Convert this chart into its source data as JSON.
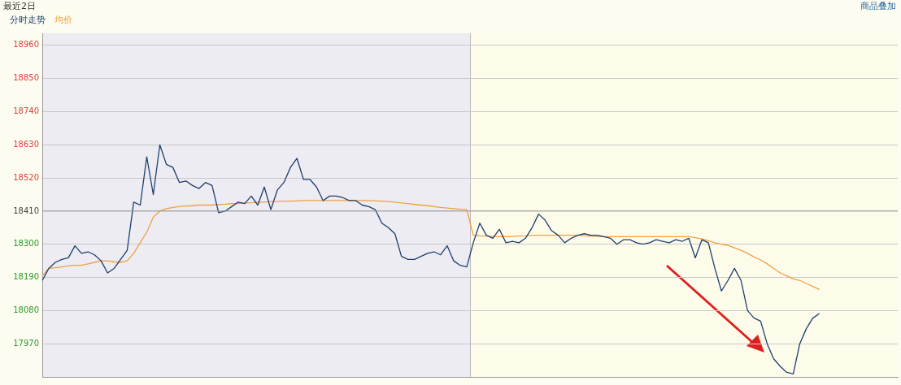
{
  "chart_data": {
    "type": "line",
    "title": "最近2日",
    "annotations": [
      "商品叠加"
    ],
    "categories": [
      null,
      null,
      null,
      null,
      null,
      null,
      null,
      null,
      null,
      null,
      null,
      null,
      null,
      null,
      null,
      null,
      null,
      null,
      null,
      null,
      null,
      null,
      null,
      null,
      null,
      null,
      null,
      null,
      null,
      null,
      null,
      null,
      null,
      null,
      null,
      null,
      null,
      null,
      null,
      null,
      null,
      null,
      null,
      null,
      null,
      null,
      null,
      null,
      null,
      null,
      null,
      null,
      null,
      null,
      null,
      null,
      null,
      null,
      null,
      null,
      null,
      null,
      null,
      null,
      null,
      null,
      null,
      null,
      null,
      null,
      null,
      null,
      null,
      null,
      null,
      null,
      null,
      null,
      null,
      null,
      null,
      null,
      null,
      null,
      null,
      null,
      null,
      null,
      null,
      null,
      null,
      null,
      null,
      null,
      null,
      null,
      null,
      null,
      null,
      null,
      null,
      null,
      null,
      null,
      null,
      null,
      null,
      null,
      null,
      null,
      null,
      null,
      null,
      null,
      null,
      null,
      null,
      null,
      null,
      null,
      null,
      null,
      null,
      null,
      null,
      null,
      null,
      null,
      null,
      null,
      null,
      null
    ],
    "series": [
      {
        "name": "分时走势",
        "color": "#1f3f6e",
        "values": [
          18180,
          18220,
          18240,
          18250,
          18255,
          18295,
          18270,
          18275,
          18265,
          18245,
          18205,
          18220,
          18250,
          18280,
          18440,
          18430,
          18590,
          18465,
          18630,
          18565,
          18555,
          18505,
          18510,
          18495,
          18485,
          18505,
          18495,
          18405,
          18410,
          18425,
          18440,
          18435,
          18460,
          18430,
          18490,
          18415,
          18480,
          18505,
          18555,
          18585,
          18515,
          18515,
          18490,
          18445,
          18460,
          18460,
          18455,
          18445,
          18445,
          18430,
          18425,
          18415,
          18370,
          18355,
          18335,
          18260,
          18250,
          18250,
          18260,
          18270,
          18275,
          18265,
          18295,
          18245,
          18230,
          18225,
          18305,
          18370,
          18330,
          18320,
          18350,
          18305,
          18310,
          18305,
          18320,
          18355,
          18400,
          18380,
          18345,
          18330,
          18305,
          18320,
          18330,
          18335,
          18330,
          18330,
          18325,
          18320,
          18300,
          18315,
          18315,
          18305,
          18300,
          18305,
          18315,
          18310,
          18305,
          18315,
          18310,
          18320,
          18255,
          18315,
          18305,
          18220,
          18145,
          18180,
          18220,
          18180,
          18080,
          18055,
          18045,
          17970,
          17920,
          17895,
          17875,
          17870,
          17970,
          18020,
          18055,
          18070,
          null,
          null,
          null,
          null,
          null,
          null,
          null,
          null,
          null,
          null,
          null,
          null
        ]
      },
      {
        "name": "均价",
        "color": "#f0a040",
        "values": [
          18195,
          18220,
          18222,
          18225,
          18228,
          18230,
          18230,
          18235,
          18240,
          18245,
          18245,
          18242,
          18240,
          18245,
          18270,
          18305,
          18340,
          18390,
          18410,
          18418,
          18422,
          18425,
          18427,
          18428,
          18430,
          18430,
          18430,
          18432,
          18433,
          18435,
          18435,
          18437,
          18438,
          18440,
          18440,
          18442,
          18442,
          18443,
          18443,
          18444,
          18445,
          18445,
          18445,
          18445,
          18445,
          18445,
          18445,
          18445,
          18445,
          18445,
          18445,
          18444,
          18443,
          18442,
          18440,
          18437,
          18435,
          18432,
          18430,
          18428,
          18425,
          18422,
          18420,
          18418,
          18416,
          18415,
          18330,
          18328,
          18327,
          18326,
          18325,
          18325,
          18326,
          18327,
          18328,
          18330,
          18330,
          18330,
          18330,
          18330,
          18330,
          18330,
          18330,
          18328,
          18327,
          18326,
          18325,
          18325,
          18325,
          18325,
          18325,
          18325,
          18325,
          18325,
          18325,
          18325,
          18325,
          18325,
          18325,
          18325,
          18322,
          18318,
          18312,
          18305,
          18300,
          18296,
          18288,
          18280,
          18270,
          18258,
          18248,
          18235,
          18220,
          18205,
          18195,
          18185,
          18180,
          18170,
          18160,
          18150,
          null,
          null,
          null,
          null,
          null,
          null,
          null,
          null,
          null,
          null,
          null,
          null
        ]
      }
    ],
    "ylim": [
      17860,
      19000
    ],
    "yticks": [
      17970,
      18080,
      18190,
      18300,
      18410,
      18520,
      18630,
      18740,
      18850,
      18960
    ],
    "ref_lines": [
      {
        "axis": "y",
        "value": 18410,
        "color": "#9a9a9a"
      }
    ],
    "grid": "y",
    "legend": "top left",
    "tick_labels": "y",
    "marker": "none",
    "line_style": "solid"
  }
}
